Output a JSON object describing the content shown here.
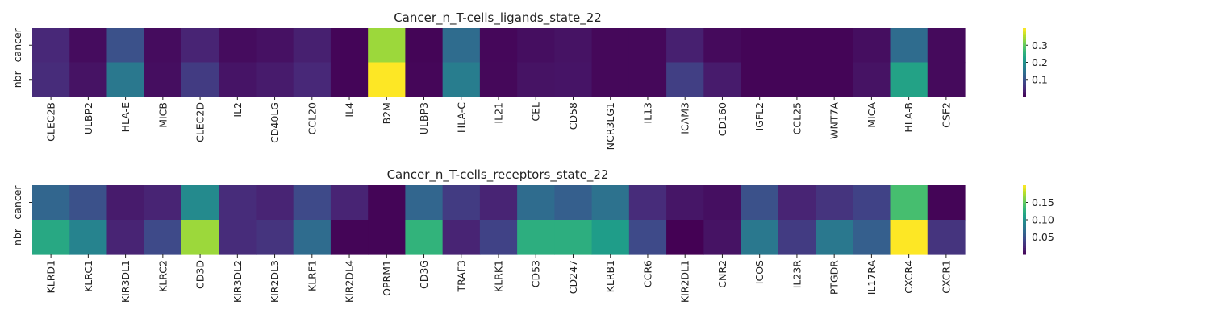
{
  "chart_data": [
    {
      "type": "heatmap",
      "title": "Cancer_n_T-cells_ligands_state_22",
      "xlabel": "",
      "ylabel": "",
      "rows": [
        "cancer",
        "nbr"
      ],
      "columns": [
        "CLEC2B",
        "ULBP2",
        "HLA-E",
        "MICB",
        "CLEC2D",
        "IL2",
        "CD40LG",
        "CCL20",
        "IL4",
        "B2M",
        "ULBP3",
        "HLA-C",
        "IL21",
        "CEL",
        "CD58",
        "NCR3LG1",
        "IL13",
        "ICAM3",
        "CD160",
        "IGFL2",
        "CCL25",
        "WNT7A",
        "MICA",
        "HLA-B",
        "CSF2"
      ],
      "values": [
        [
          0.045,
          0.012,
          0.1,
          0.012,
          0.04,
          0.012,
          0.018,
          0.035,
          0.005,
          0.34,
          0.004,
          0.14,
          0.007,
          0.015,
          0.02,
          0.008,
          0.008,
          0.035,
          0.01,
          0.004,
          0.004,
          0.004,
          0.015,
          0.14,
          0.01
        ],
        [
          0.05,
          0.02,
          0.16,
          0.015,
          0.07,
          0.022,
          0.03,
          0.045,
          0.005,
          0.4,
          0.006,
          0.17,
          0.008,
          0.02,
          0.022,
          0.008,
          0.008,
          0.075,
          0.03,
          0.004,
          0.004,
          0.004,
          0.02,
          0.23,
          0.01
        ]
      ],
      "colorbar": {
        "min": 0.0,
        "max": 0.4,
        "ticks": [
          0.1,
          0.2,
          0.3
        ],
        "tick_labels": [
          "0.1",
          "0.2",
          "0.3"
        ]
      },
      "colormap": [
        "#440154",
        "#482878",
        "#3e4989",
        "#31688e",
        "#26828e",
        "#1f9e89",
        "#35b779",
        "#6ece58",
        "#b5de2b",
        "#fde725"
      ]
    },
    {
      "type": "heatmap",
      "title": "Cancer_n_T-cells_receptors_state_22",
      "xlabel": "",
      "ylabel": "",
      "rows": [
        "cancer",
        "nbr"
      ],
      "columns": [
        "KLRD1",
        "KLRC1",
        "KIR3DL1",
        "KLRC2",
        "CD3D",
        "KIR3DL2",
        "KIR2DL3",
        "KLRF1",
        "KIR2DL4",
        "OPRM1",
        "CD3G",
        "TRAF3",
        "KLRK1",
        "CD53",
        "CD247",
        "KLRB1",
        "CCR6",
        "KIR2DL1",
        "CNR2",
        "ICOS",
        "IL23R",
        "PTGDR",
        "IL17RA",
        "CXCR4",
        "CXCR1"
      ],
      "values": [
        [
          0.065,
          0.05,
          0.015,
          0.02,
          0.095,
          0.025,
          0.02,
          0.045,
          0.02,
          0.002,
          0.065,
          0.035,
          0.02,
          0.07,
          0.06,
          0.075,
          0.025,
          0.012,
          0.008,
          0.05,
          0.02,
          0.03,
          0.04,
          0.14,
          0.002
        ],
        [
          0.12,
          0.09,
          0.02,
          0.045,
          0.17,
          0.025,
          0.03,
          0.07,
          0.002,
          0.002,
          0.13,
          0.02,
          0.04,
          0.125,
          0.125,
          0.11,
          0.045,
          0.0,
          0.01,
          0.08,
          0.035,
          0.08,
          0.06,
          0.2,
          0.03
        ]
      ],
      "colorbar": {
        "min": 0.0,
        "max": 0.2,
        "ticks": [
          0.05,
          0.1,
          0.15
        ],
        "tick_labels": [
          "0.05",
          "0.10",
          "0.15"
        ]
      },
      "colormap": [
        "#440154",
        "#482878",
        "#3e4989",
        "#31688e",
        "#26828e",
        "#1f9e89",
        "#35b779",
        "#6ece58",
        "#b5de2b",
        "#fde725"
      ]
    }
  ]
}
